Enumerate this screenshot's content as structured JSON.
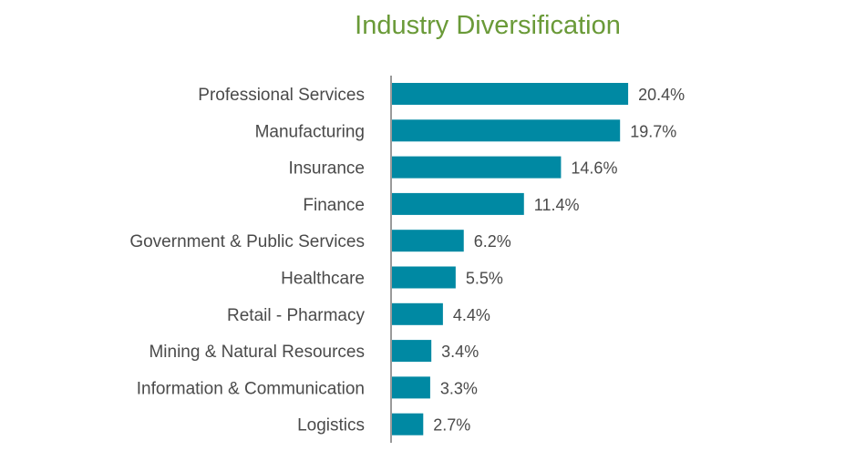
{
  "chart_data": {
    "type": "bar",
    "orientation": "horizontal",
    "title": "Industry Diversification",
    "categories": [
      "Professional Services",
      "Manufacturing",
      "Insurance",
      "Finance",
      "Government & Public Services",
      "Healthcare",
      "Retail - Pharmacy",
      "Mining & Natural Resources",
      "Information & Communication",
      "Logistics"
    ],
    "values": [
      20.4,
      19.7,
      14.6,
      11.4,
      6.2,
      5.5,
      4.4,
      3.4,
      3.3,
      2.7
    ],
    "value_labels": [
      "20.4%",
      "19.7%",
      "14.6%",
      "11.4%",
      "6.2%",
      "5.5%",
      "4.4%",
      "3.4%",
      "3.3%",
      "2.7%"
    ],
    "xlabel": "",
    "ylabel": "",
    "unit": "%",
    "bar_color": "#0089a3",
    "title_color": "#6a9a38",
    "text_color": "#4a4a4a",
    "axis_color": "#9a9a9a"
  }
}
